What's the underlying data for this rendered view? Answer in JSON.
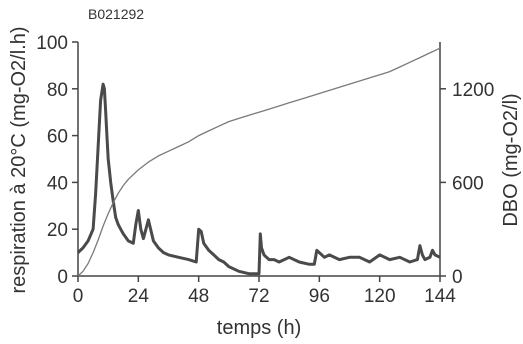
{
  "chart_data": {
    "type": "line",
    "code_label": "B021292",
    "xlabel": "temps (h)",
    "ylabel_left": "respiration à 20°C (mg-O2/l.h)",
    "ylabel_right": "DBO (mg-O2/l)",
    "xlim": [
      0,
      144
    ],
    "ylim_left": [
      0,
      100
    ],
    "ylim_right": [
      0,
      1500
    ],
    "x_ticks": [
      "0",
      "24",
      "48",
      "72",
      "96",
      "120",
      "144"
    ],
    "y_ticks_left": [
      "0",
      "20",
      "40",
      "60",
      "80",
      "100"
    ],
    "y_ticks_right": [
      "0",
      "600",
      "1200"
    ],
    "grid": false,
    "series": [
      {
        "axis": "left",
        "color": "#4a4a4a",
        "x": [
          0,
          2,
          4,
          6,
          7,
          8,
          9,
          10,
          10.5,
          11,
          11.5,
          12,
          13,
          14,
          15,
          16,
          17,
          18,
          20,
          22,
          23,
          24,
          25,
          26,
          28,
          30,
          32,
          34,
          36,
          40,
          44,
          47,
          48,
          49,
          50,
          52,
          54,
          56,
          58,
          60,
          64,
          68,
          70,
          72,
          72.5,
          73,
          74,
          75,
          76,
          78,
          80,
          84,
          88,
          92,
          94,
          95,
          96,
          98,
          100,
          104,
          108,
          112,
          116,
          120,
          124,
          128,
          132,
          135,
          136,
          137,
          138,
          140,
          141,
          142,
          144
        ],
        "y": [
          10,
          12,
          15,
          20,
          35,
          55,
          75,
          82,
          80,
          70,
          60,
          50,
          40,
          32,
          25,
          22,
          20,
          18,
          15,
          14,
          22,
          28,
          20,
          16,
          24,
          15,
          12,
          10,
          9,
          8,
          7,
          6,
          20,
          19,
          14,
          11,
          9,
          7,
          6,
          4,
          2,
          1,
          1,
          1,
          18,
          12,
          9,
          8,
          7,
          7,
          6,
          8,
          6,
          5,
          5,
          11,
          10,
          8,
          9,
          7,
          8,
          8,
          6,
          9,
          7,
          8,
          6,
          7,
          13,
          9,
          7,
          8,
          11,
          9,
          8
        ]
      },
      {
        "axis": "right",
        "color": "#7a7a7a",
        "x": [
          0,
          2,
          4,
          6,
          8,
          10,
          12,
          14,
          16,
          18,
          20,
          24,
          28,
          32,
          36,
          40,
          44,
          48,
          52,
          56,
          60,
          64,
          68,
          72,
          76,
          80,
          84,
          88,
          92,
          96,
          100,
          104,
          108,
          112,
          116,
          120,
          124,
          128,
          132,
          136,
          140,
          144
        ],
        "y": [
          0,
          30,
          80,
          150,
          230,
          320,
          400,
          470,
          530,
          580,
          620,
          680,
          730,
          770,
          800,
          830,
          860,
          900,
          930,
          960,
          990,
          1010,
          1030,
          1050,
          1070,
          1090,
          1110,
          1130,
          1150,
          1170,
          1190,
          1210,
          1230,
          1250,
          1270,
          1290,
          1310,
          1340,
          1370,
          1400,
          1430,
          1460
        ]
      }
    ]
  }
}
